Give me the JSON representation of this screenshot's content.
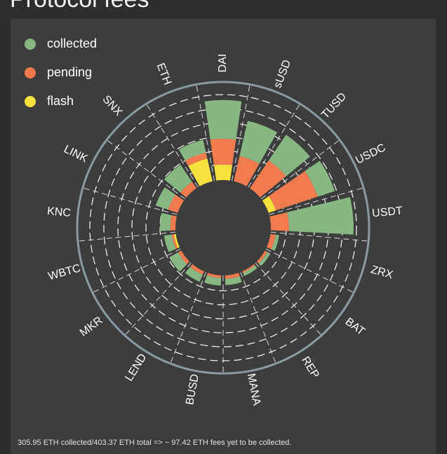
{
  "page": {
    "title": "Protocol fees"
  },
  "legend": [
    {
      "label": "collected",
      "color": "#88b784"
    },
    {
      "label": "pending",
      "color": "#f07b4f"
    },
    {
      "label": "flash",
      "color": "#f5e13e"
    }
  ],
  "footer": {
    "text": "305.95 ETH collected/403.37 ETH total => ~ 97.42 ETH fees yet to be collected."
  },
  "chart_data": {
    "type": "bar",
    "subtype": "radial-stacked",
    "categories": [
      "DAI",
      "sUSD",
      "TUSD",
      "USDC",
      "USDT",
      "ZRX",
      "BAT",
      "REP",
      "MANA",
      "BUSD",
      "LEND",
      "MKR",
      "WBTC",
      "KNC",
      "LINK",
      "SNX",
      "ETH"
    ],
    "series": [
      {
        "name": "flash",
        "color": "#f5e13e",
        "values": [
          3.0,
          0.0,
          0.0,
          1.5,
          0.0,
          0.0,
          0.0,
          0.0,
          0.0,
          0.0,
          0.0,
          0.0,
          0.4,
          0.0,
          0.0,
          0.0,
          4.5
        ]
      },
      {
        "name": "pending",
        "color": "#f07b4f",
        "values": [
          5.0,
          5.0,
          6.5,
          8.5,
          3.5,
          1.0,
          0.5,
          0.3,
          0.7,
          0.5,
          0.7,
          0.7,
          0.4,
          1.0,
          2.0,
          1.5,
          1.2
        ]
      },
      {
        "name": "collected",
        "color": "#88b784",
        "values": [
          7.5,
          7.0,
          6.0,
          3.5,
          12.5,
          0.7,
          0.7,
          0.7,
          1.2,
          1.5,
          1.5,
          2.0,
          1.5,
          2.0,
          2.5,
          4.0,
          2.5
        ]
      }
    ],
    "rlim": [
      0,
      19
    ],
    "grid": true,
    "legend_position": "top-left"
  }
}
